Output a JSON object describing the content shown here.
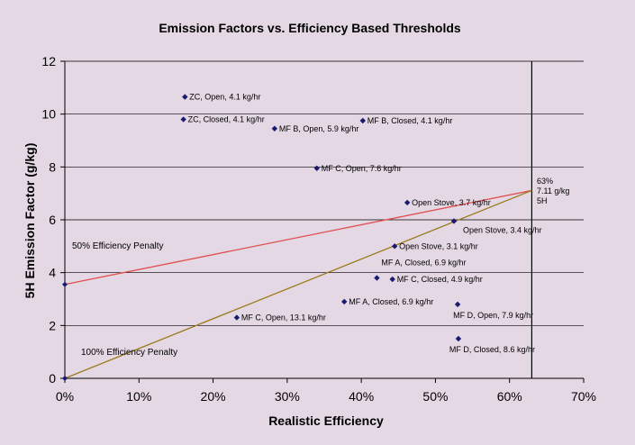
{
  "chart_data": {
    "type": "scatter",
    "title": "Emission Factors vs. Efficiency Based Thresholds",
    "xlabel": "Realistic Efficiency",
    "ylabel": "5H Emission Factor (g/kg)",
    "xlim": [
      0,
      0.7
    ],
    "ylim": [
      0,
      12
    ],
    "x_ticks": [
      "0%",
      "10%",
      "20%",
      "30%",
      "40%",
      "50%",
      "60%",
      "70%"
    ],
    "y_ticks": [
      "0",
      "2",
      "4",
      "6",
      "8",
      "10",
      "12"
    ],
    "grid": "horizontal",
    "points": [
      {
        "x": 0.162,
        "y": 10.65,
        "label": "ZC, Open, 4.1 kg/hr"
      },
      {
        "x": 0.16,
        "y": 9.8,
        "label": "ZC, Closed, 4.1 kg/hr"
      },
      {
        "x": 0.283,
        "y": 9.45,
        "label": "MF B, Open, 5.9 kg/hr"
      },
      {
        "x": 0.402,
        "y": 9.75,
        "label": "MF B, Closed, 4.1 kg/hr"
      },
      {
        "x": 0.34,
        "y": 7.95,
        "label": "MF C, Open, 7.6 kg/hr"
      },
      {
        "x": 0.462,
        "y": 6.65,
        "label": "Open Stove, 3.7 kg/hr"
      },
      {
        "x": 0.525,
        "y": 5.95,
        "label": "Open Stove, 3.4 kg/hr"
      },
      {
        "x": 0.445,
        "y": 5.0,
        "label": "Open Stove, 3.1 kg/hr"
      },
      {
        "x": 0.421,
        "y": 3.8,
        "label": "MF A, Closed, 6.9 kg/hr"
      },
      {
        "x": 0.442,
        "y": 3.75,
        "label": "MF C, Closed, 4.9 kg/hr"
      },
      {
        "x": 0.377,
        "y": 2.9,
        "label": "MF A, Closed, 6.9 kg/hr"
      },
      {
        "x": 0.232,
        "y": 2.3,
        "label": "MF C, Open, 13.1 kg/hr"
      },
      {
        "x": 0.53,
        "y": 2.8,
        "label": "MF D, Open, 7.9 kg/hr"
      },
      {
        "x": 0.531,
        "y": 1.5,
        "label": "MF D, Closed, 8.6 kg/hr"
      }
    ],
    "lines": [
      {
        "name": "50% Efficiency Penalty",
        "color": "#e05050",
        "x": [
          0,
          0.63
        ],
        "y": [
          3.555,
          7.11
        ]
      },
      {
        "name": "100% Efficiency Penalty",
        "color": "#9a7a1a",
        "x": [
          0,
          0.63
        ],
        "y": [
          0,
          7.11
        ]
      }
    ],
    "threshold_x": 0.63,
    "threshold_label": [
      "63%",
      "7.11 g/kg",
      "5H"
    ],
    "colors": {
      "background": "#e4d8e4",
      "marker": "#1a1a6e"
    }
  }
}
